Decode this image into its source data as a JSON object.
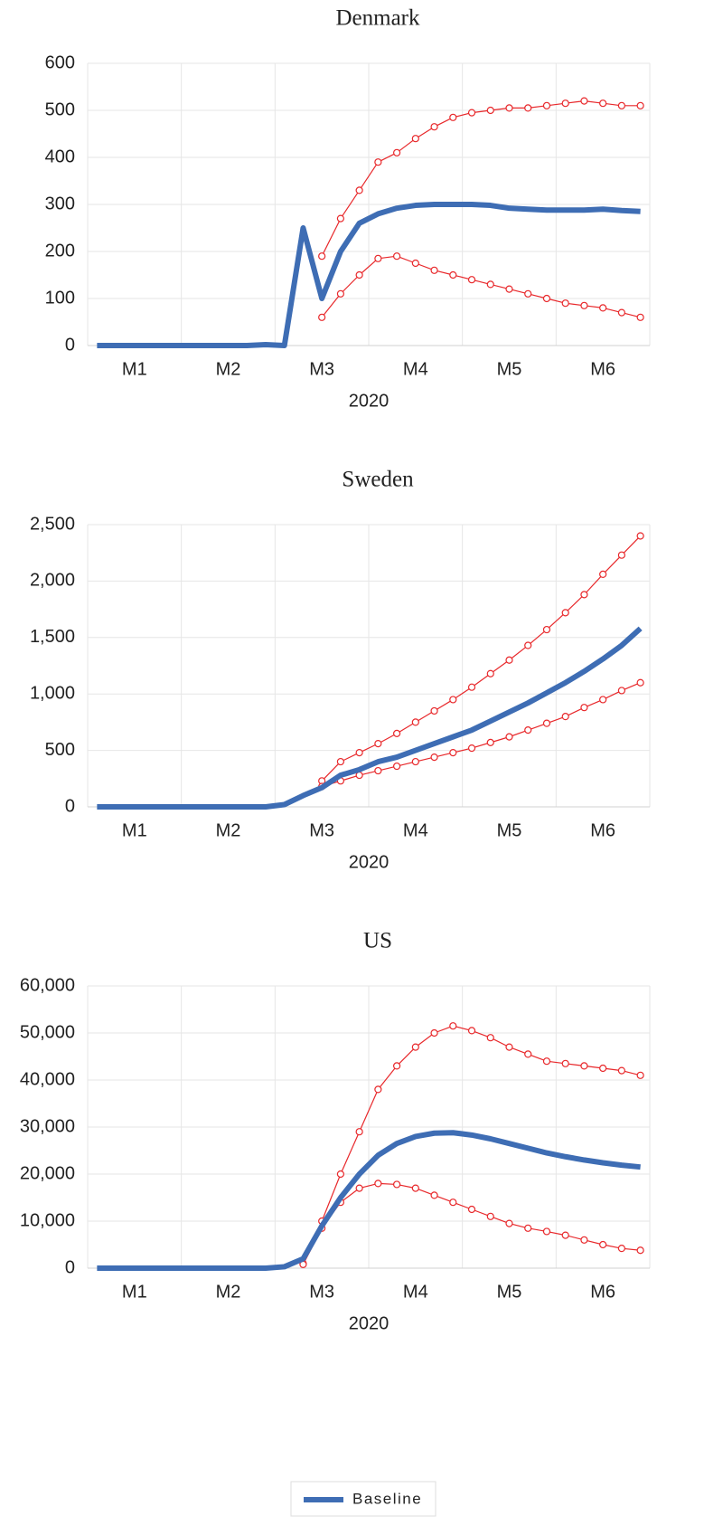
{
  "chart_data": [
    {
      "type": "line",
      "title": "Denmark",
      "xlabel": "2020",
      "categories": [
        null,
        null,
        "M1",
        null,
        null,
        null,
        null,
        "M2",
        null,
        null,
        null,
        null,
        "M3",
        null,
        null,
        null,
        null,
        "M4",
        null,
        null,
        null,
        null,
        "M5",
        null,
        null,
        null,
        null,
        "M6",
        null,
        null
      ],
      "ylim": [
        0,
        600
      ],
      "yticks": [
        0,
        100,
        200,
        300,
        400,
        500,
        600
      ],
      "grid": true,
      "series": [
        {
          "color": "#e8282b",
          "marker": "circle",
          "values": [
            null,
            null,
            null,
            null,
            null,
            null,
            null,
            null,
            null,
            null,
            null,
            null,
            190,
            270,
            330,
            390,
            410,
            440,
            465,
            485,
            495,
            500,
            505,
            505,
            510,
            515,
            520,
            515,
            510,
            510
          ]
        },
        {
          "color": "#e8282b",
          "marker": "circle",
          "values": [
            null,
            null,
            null,
            null,
            null,
            null,
            null,
            null,
            null,
            null,
            null,
            null,
            60,
            110,
            150,
            185,
            190,
            175,
            160,
            150,
            140,
            130,
            120,
            110,
            100,
            90,
            85,
            80,
            70,
            60
          ]
        },
        {
          "color": "#3e6db4",
          "values": [
            0,
            0,
            0,
            0,
            0,
            0,
            0,
            0,
            0,
            2,
            0,
            250,
            100,
            200,
            260,
            280,
            292,
            298,
            300,
            300,
            300,
            298,
            292,
            290,
            288,
            288,
            288,
            290,
            287,
            285
          ]
        }
      ]
    },
    {
      "type": "line",
      "title": "Sweden",
      "xlabel": "2020",
      "categories": [
        null,
        null,
        "M1",
        null,
        null,
        null,
        null,
        "M2",
        null,
        null,
        null,
        null,
        "M3",
        null,
        null,
        null,
        null,
        "M4",
        null,
        null,
        null,
        null,
        "M5",
        null,
        null,
        null,
        null,
        "M6",
        null,
        null
      ],
      "ylim": [
        0,
        2500
      ],
      "yticks": [
        0,
        500,
        {
          "value": 1000,
          "label": "1,000"
        },
        {
          "value": 1500,
          "label": "1,500"
        },
        {
          "value": 2000,
          "label": "2,000"
        },
        {
          "value": 2500,
          "label": "2,500"
        }
      ],
      "grid": true,
      "series": [
        {
          "color": "#e8282b",
          "marker": "circle",
          "values": [
            null,
            null,
            null,
            null,
            null,
            null,
            null,
            null,
            null,
            null,
            null,
            null,
            230,
            400,
            480,
            560,
            650,
            750,
            850,
            950,
            1060,
            1180,
            1300,
            1430,
            1570,
            1720,
            1880,
            2060,
            2230,
            2400
          ]
        },
        {
          "color": "#e8282b",
          "marker": "circle",
          "values": [
            null,
            null,
            null,
            null,
            null,
            null,
            null,
            null,
            null,
            null,
            null,
            null,
            180,
            230,
            280,
            320,
            360,
            400,
            440,
            480,
            520,
            570,
            620,
            680,
            740,
            800,
            880,
            950,
            1030,
            1100
          ]
        },
        {
          "color": "#3e6db4",
          "values": [
            0,
            0,
            0,
            0,
            0,
            0,
            0,
            0,
            0,
            0,
            20,
            100,
            170,
            280,
            330,
            400,
            440,
            500,
            560,
            620,
            680,
            760,
            840,
            920,
            1010,
            1100,
            1200,
            1310,
            1430,
            1580
          ]
        }
      ]
    },
    {
      "type": "line",
      "title": "US",
      "xlabel": "2020",
      "categories": [
        null,
        null,
        "M1",
        null,
        null,
        null,
        null,
        "M2",
        null,
        null,
        null,
        null,
        "M3",
        null,
        null,
        null,
        null,
        "M4",
        null,
        null,
        null,
        null,
        "M5",
        null,
        null,
        null,
        null,
        "M6",
        null,
        null
      ],
      "ylim": [
        0,
        60000
      ],
      "yticks": [
        0,
        {
          "value": 10000,
          "label": "10,000"
        },
        {
          "value": 20000,
          "label": "20,000"
        },
        {
          "value": 30000,
          "label": "30,000"
        },
        {
          "value": 40000,
          "label": "40,000"
        },
        {
          "value": 50000,
          "label": "50,000"
        },
        {
          "value": 60000,
          "label": "60,000"
        }
      ],
      "grid": true,
      "legend": "bottom",
      "series": [
        {
          "color": "#e8282b",
          "marker": "circle",
          "values": [
            null,
            null,
            null,
            null,
            null,
            null,
            null,
            null,
            null,
            null,
            null,
            1000,
            10000,
            20000,
            29000,
            38000,
            43000,
            47000,
            50000,
            51500,
            50500,
            49000,
            47000,
            45500,
            44000,
            43500,
            43000,
            42500,
            42000,
            41000
          ]
        },
        {
          "color": "#e8282b",
          "marker": "circle",
          "values": [
            null,
            null,
            null,
            null,
            null,
            null,
            null,
            null,
            null,
            null,
            null,
            800,
            8500,
            14000,
            17000,
            18000,
            17800,
            17000,
            15500,
            14000,
            12500,
            11000,
            9500,
            8500,
            7800,
            7000,
            6000,
            5000,
            4200,
            3800
          ]
        },
        {
          "name": "Baseline",
          "color": "#3e6db4",
          "values": [
            0,
            0,
            0,
            0,
            0,
            0,
            0,
            0,
            0,
            0,
            300,
            2000,
            9000,
            15000,
            20000,
            24000,
            26500,
            28000,
            28700,
            28800,
            28300,
            27500,
            26500,
            25500,
            24500,
            23700,
            23000,
            22400,
            21900,
            21500
          ]
        }
      ]
    }
  ]
}
